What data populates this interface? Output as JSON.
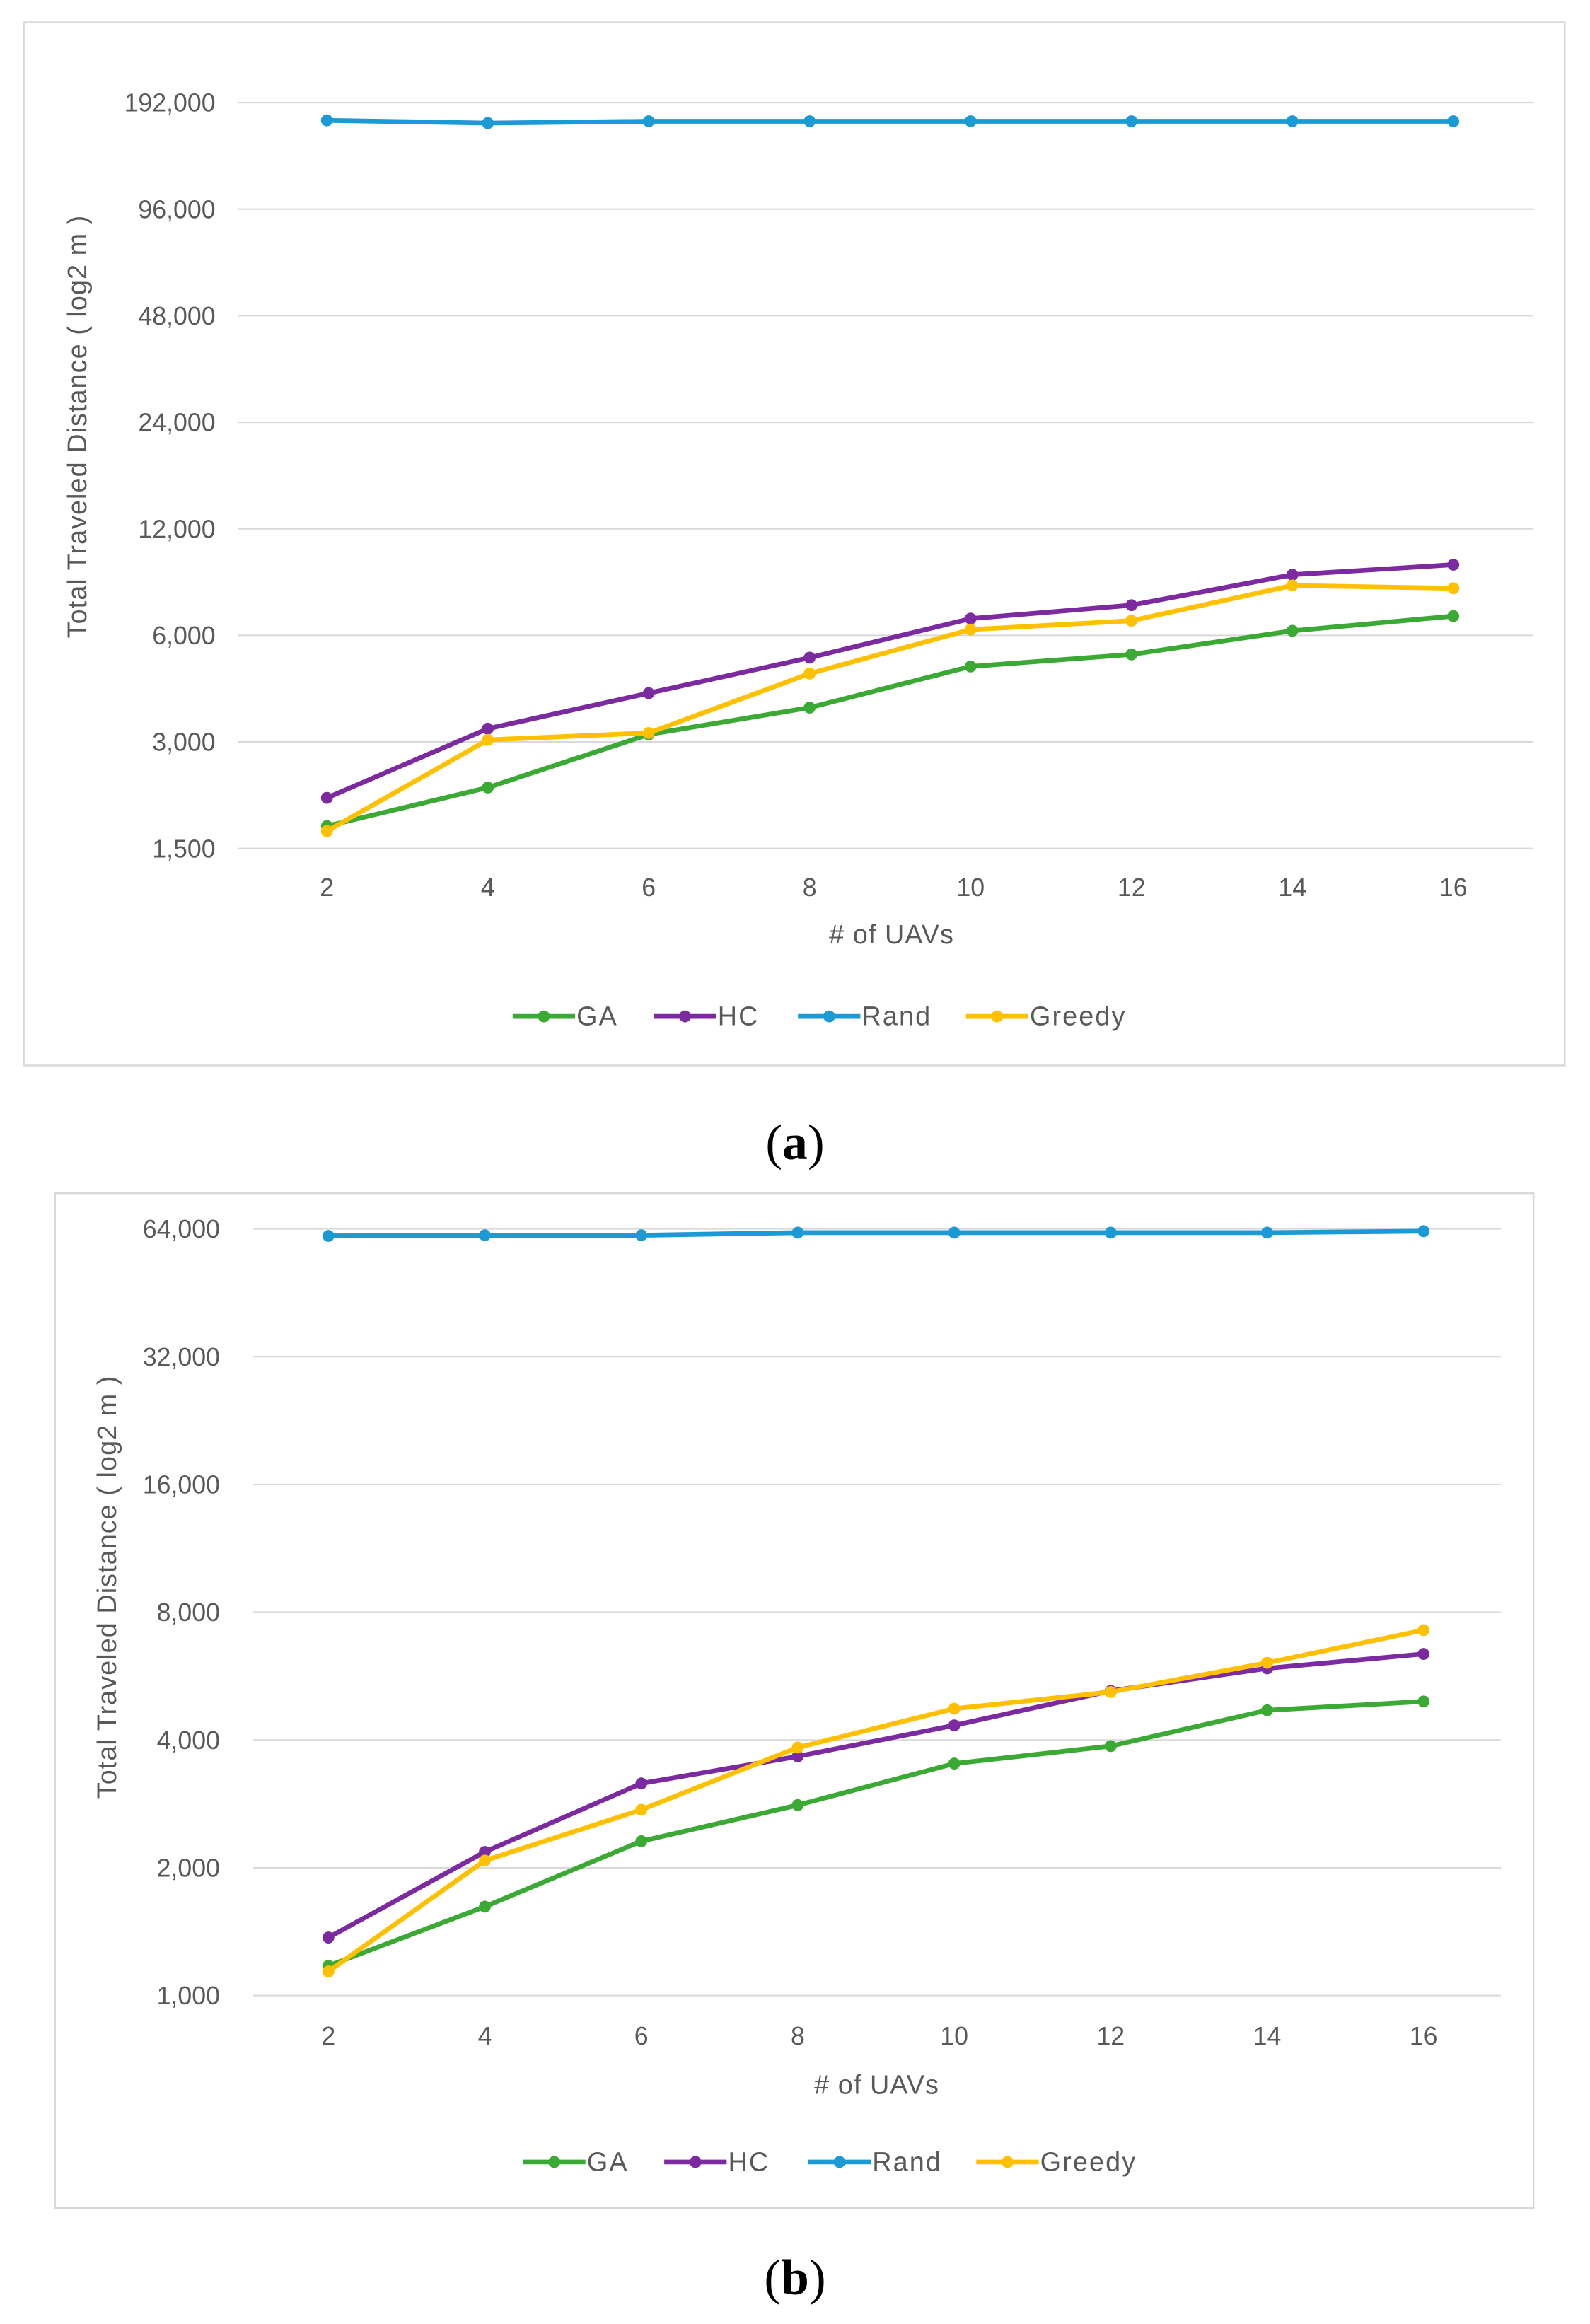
{
  "chart_data": [
    {
      "type": "line",
      "caption_letter": "a",
      "caption_open": "(",
      "caption_close": ")",
      "title": "",
      "xlabel": "# of UAVs",
      "ylabel": "Total Traveled Distance ( log2 m )",
      "yscale": "log2",
      "ylim": [
        1500,
        192000
      ],
      "grid": true,
      "legend_position": "bottom",
      "x": [
        2,
        4,
        6,
        8,
        10,
        12,
        14,
        16
      ],
      "x_tick_labels": [
        "2",
        "4",
        "6",
        "8",
        "10",
        "12",
        "14",
        "16"
      ],
      "y_ticks": [
        1500,
        3000,
        6000,
        12000,
        24000,
        48000,
        96000,
        192000
      ],
      "y_tick_labels": [
        "1,500",
        "3,000",
        "6,000",
        "12,000",
        "24,000",
        "48,000",
        "96,000",
        "192,000"
      ],
      "series": [
        {
          "name": "GA",
          "color": "#3AAA35",
          "values": [
            1735,
            2230,
            3150,
            3750,
            4900,
            5300,
            6180,
            6800
          ]
        },
        {
          "name": "HC",
          "color": "#7B2AA0",
          "values": [
            2085,
            3270,
            4120,
            5190,
            6690,
            7300,
            8900,
            9500
          ]
        },
        {
          "name": "Rand",
          "color": "#1C9AD6",
          "values": [
            171000,
            168000,
            170000,
            170000,
            170000,
            170000,
            170000,
            170000
          ]
        },
        {
          "name": "Greedy",
          "color": "#FFC000",
          "values": [
            1680,
            3040,
            3180,
            4680,
            6230,
            6600,
            8300,
            8150
          ]
        }
      ]
    },
    {
      "type": "line",
      "caption_letter": "b",
      "caption_open": "(",
      "caption_close": ")",
      "title": "",
      "xlabel": "# of UAVs",
      "ylabel": "Total Traveled Distance ( log2 m )",
      "yscale": "log2",
      "ylim": [
        1000,
        64000
      ],
      "grid": true,
      "legend_position": "bottom",
      "x": [
        2,
        4,
        6,
        8,
        10,
        12,
        14,
        16
      ],
      "x_tick_labels": [
        "2",
        "4",
        "6",
        "8",
        "10",
        "12",
        "14",
        "16"
      ],
      "y_ticks": [
        1000,
        2000,
        4000,
        8000,
        16000,
        32000,
        64000
      ],
      "y_tick_labels": [
        "1,000",
        "2,000",
        "4,000",
        "8,000",
        "16,000",
        "32,000",
        "64,000"
      ],
      "series": [
        {
          "name": "GA",
          "color": "#3AAA35",
          "values": [
            1175,
            1620,
            2310,
            2810,
            3520,
            3870,
            4700,
            4930
          ]
        },
        {
          "name": "HC",
          "color": "#7B2AA0",
          "values": [
            1370,
            2180,
            3160,
            3660,
            4330,
            5220,
            5900,
            6380
          ]
        },
        {
          "name": "Rand",
          "color": "#1C9AD6",
          "values": [
            61600,
            61800,
            61800,
            62700,
            62700,
            62700,
            62700,
            63200
          ]
        },
        {
          "name": "Greedy",
          "color": "#FFC000",
          "values": [
            1140,
            2080,
            2740,
            3840,
            4740,
            5190,
            6080,
            7260
          ]
        }
      ]
    }
  ]
}
